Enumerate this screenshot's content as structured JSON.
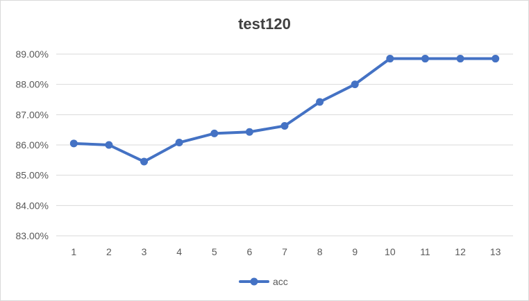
{
  "chart_data": {
    "type": "line",
    "title": "test120",
    "xlabel": "",
    "ylabel": "",
    "categories": [
      "1",
      "2",
      "3",
      "4",
      "5",
      "6",
      "7",
      "8",
      "9",
      "10",
      "11",
      "12",
      "13"
    ],
    "series": [
      {
        "name": "acc",
        "values": [
          86.05,
          86.0,
          85.45,
          86.08,
          86.38,
          86.43,
          86.63,
          87.42,
          88.0,
          88.85,
          88.85,
          88.85,
          88.85
        ],
        "color": "#4472c4",
        "marker": "circle"
      }
    ],
    "ylim": [
      83,
      89
    ],
    "yticks": [
      83,
      84,
      85,
      86,
      87,
      88,
      89
    ],
    "ytick_labels": [
      "83.00%",
      "84.00%",
      "85.00%",
      "86.00%",
      "87.00%",
      "88.00%",
      "89.00%"
    ],
    "grid": true,
    "gridline_color": "#d9d9d9",
    "legend_position": "bottom"
  }
}
